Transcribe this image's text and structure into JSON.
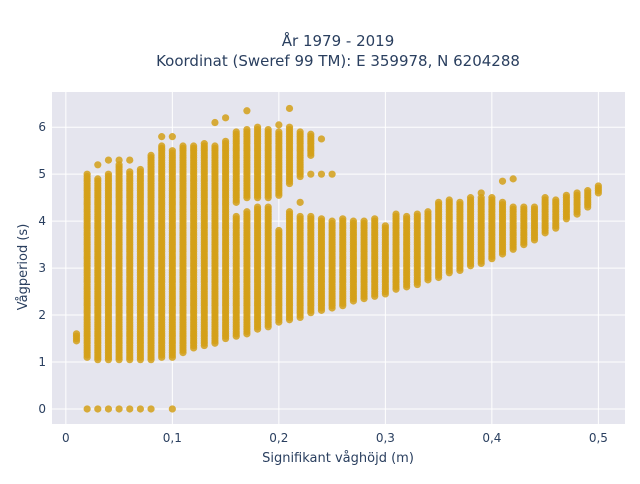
{
  "chart_data": {
    "type": "scatter",
    "title": [
      "År 1979 - 2019",
      "Koordinat (Sweref 99 TM): E 359978, N 6204288"
    ],
    "xlabel": "Signifikant våghöjd (m)",
    "ylabel": "Vågperiod (s)",
    "xlim": [
      -0.013,
      0.525
    ],
    "ylim": [
      -0.32,
      6.75
    ],
    "xticks": [
      0,
      0.1,
      0.2,
      0.3,
      0.4,
      0.5
    ],
    "xtick_labels": [
      "0",
      "0,1",
      "0,2",
      "0,3",
      "0,4",
      "0,5"
    ],
    "yticks": [
      0,
      1,
      2,
      3,
      4,
      5,
      6
    ],
    "ytick_labels": [
      "0",
      "1",
      "2",
      "3",
      "4",
      "5",
      "6"
    ],
    "grid": true,
    "legend": "none",
    "point_color": "#d4a017",
    "background": "#e5e5ee",
    "columns": [
      {
        "x": 0.01,
        "ranges": [
          [
            1.45,
            1.6
          ]
        ]
      },
      {
        "x": 0.02,
        "ranges": [
          [
            1.1,
            5.0
          ]
        ],
        "points": [
          0
        ]
      },
      {
        "x": 0.03,
        "ranges": [
          [
            1.05,
            4.9
          ]
        ],
        "points": [
          0,
          5.2
        ]
      },
      {
        "x": 0.04,
        "ranges": [
          [
            1.05,
            5.0
          ]
        ],
        "points": [
          0,
          5.3
        ]
      },
      {
        "x": 0.05,
        "ranges": [
          [
            1.05,
            5.2
          ]
        ],
        "points": [
          0,
          5.3
        ]
      },
      {
        "x": 0.06,
        "ranges": [
          [
            1.05,
            5.05
          ]
        ],
        "points": [
          0,
          5.3
        ]
      },
      {
        "x": 0.07,
        "ranges": [
          [
            1.05,
            5.1
          ]
        ],
        "points": [
          0
        ]
      },
      {
        "x": 0.08,
        "ranges": [
          [
            1.05,
            5.4
          ]
        ],
        "points": [
          0
        ]
      },
      {
        "x": 0.09,
        "ranges": [
          [
            1.1,
            5.6
          ]
        ],
        "points": [
          5.8
        ]
      },
      {
        "x": 0.1,
        "ranges": [
          [
            1.1,
            5.5
          ]
        ],
        "points": [
          0,
          5.8
        ]
      },
      {
        "x": 0.11,
        "ranges": [
          [
            1.2,
            5.6
          ]
        ]
      },
      {
        "x": 0.12,
        "ranges": [
          [
            1.3,
            5.6
          ]
        ]
      },
      {
        "x": 0.13,
        "ranges": [
          [
            1.35,
            5.65
          ]
        ]
      },
      {
        "x": 0.14,
        "ranges": [
          [
            1.4,
            5.6
          ]
        ],
        "points": [
          6.1
        ]
      },
      {
        "x": 0.15,
        "ranges": [
          [
            1.5,
            5.7
          ]
        ],
        "points": [
          6.2
        ]
      },
      {
        "x": 0.16,
        "ranges": [
          [
            1.55,
            4.1
          ],
          [
            4.4,
            5.9
          ]
        ]
      },
      {
        "x": 0.17,
        "ranges": [
          [
            1.6,
            4.2
          ],
          [
            4.5,
            5.95
          ]
        ],
        "points": [
          6.35
        ]
      },
      {
        "x": 0.18,
        "ranges": [
          [
            1.7,
            4.3
          ],
          [
            4.5,
            6.0
          ]
        ]
      },
      {
        "x": 0.19,
        "ranges": [
          [
            1.75,
            4.3
          ],
          [
            4.5,
            5.95
          ]
        ]
      },
      {
        "x": 0.2,
        "ranges": [
          [
            1.85,
            3.8
          ],
          [
            4.55,
            5.9
          ]
        ],
        "points": [
          6.05
        ]
      },
      {
        "x": 0.21,
        "ranges": [
          [
            1.9,
            4.2
          ],
          [
            4.8,
            6.0
          ]
        ],
        "points": [
          6.4
        ]
      },
      {
        "x": 0.22,
        "ranges": [
          [
            1.95,
            4.1
          ],
          [
            4.95,
            5.9
          ]
        ],
        "points": [
          4.4
        ]
      },
      {
        "x": 0.23,
        "ranges": [
          [
            2.05,
            4.1
          ],
          [
            5.4,
            5.85
          ]
        ],
        "points": [
          5.0
        ]
      },
      {
        "x": 0.24,
        "ranges": [
          [
            2.1,
            4.05
          ]
        ],
        "points": [
          5.0,
          5.75
        ]
      },
      {
        "x": 0.25,
        "ranges": [
          [
            2.15,
            4.0
          ]
        ],
        "points": [
          5.0
        ]
      },
      {
        "x": 0.26,
        "ranges": [
          [
            2.2,
            4.05
          ]
        ]
      },
      {
        "x": 0.27,
        "ranges": [
          [
            2.3,
            4.0
          ]
        ]
      },
      {
        "x": 0.28,
        "ranges": [
          [
            2.35,
            4.0
          ]
        ]
      },
      {
        "x": 0.29,
        "ranges": [
          [
            2.4,
            4.05
          ]
        ]
      },
      {
        "x": 0.3,
        "ranges": [
          [
            2.45,
            3.9
          ]
        ]
      },
      {
        "x": 0.31,
        "ranges": [
          [
            2.55,
            4.15
          ]
        ]
      },
      {
        "x": 0.32,
        "ranges": [
          [
            2.6,
            4.1
          ]
        ]
      },
      {
        "x": 0.33,
        "ranges": [
          [
            2.65,
            4.15
          ]
        ]
      },
      {
        "x": 0.34,
        "ranges": [
          [
            2.75,
            4.2
          ]
        ]
      },
      {
        "x": 0.35,
        "ranges": [
          [
            2.8,
            4.4
          ]
        ]
      },
      {
        "x": 0.36,
        "ranges": [
          [
            2.9,
            4.45
          ]
        ]
      },
      {
        "x": 0.37,
        "ranges": [
          [
            2.95,
            4.4
          ]
        ]
      },
      {
        "x": 0.38,
        "ranges": [
          [
            3.05,
            4.5
          ]
        ]
      },
      {
        "x": 0.39,
        "ranges": [
          [
            3.1,
            4.5
          ]
        ],
        "points": [
          4.6
        ]
      },
      {
        "x": 0.4,
        "ranges": [
          [
            3.2,
            4.5
          ]
        ]
      },
      {
        "x": 0.41,
        "ranges": [
          [
            3.3,
            4.4
          ]
        ],
        "points": [
          4.85
        ]
      },
      {
        "x": 0.42,
        "ranges": [
          [
            3.4,
            4.3
          ]
        ],
        "points": [
          4.9
        ]
      },
      {
        "x": 0.43,
        "ranges": [
          [
            3.5,
            4.3
          ]
        ]
      },
      {
        "x": 0.44,
        "ranges": [
          [
            3.6,
            4.3
          ]
        ]
      },
      {
        "x": 0.45,
        "ranges": [
          [
            3.75,
            4.5
          ]
        ]
      },
      {
        "x": 0.46,
        "ranges": [
          [
            3.85,
            4.45
          ]
        ]
      },
      {
        "x": 0.47,
        "ranges": [
          [
            4.05,
            4.55
          ]
        ]
      },
      {
        "x": 0.48,
        "ranges": [
          [
            4.15,
            4.6
          ]
        ]
      },
      {
        "x": 0.49,
        "ranges": [
          [
            4.3,
            4.65
          ]
        ]
      },
      {
        "x": 0.5,
        "ranges": [
          [
            4.6,
            4.75
          ]
        ]
      }
    ]
  }
}
